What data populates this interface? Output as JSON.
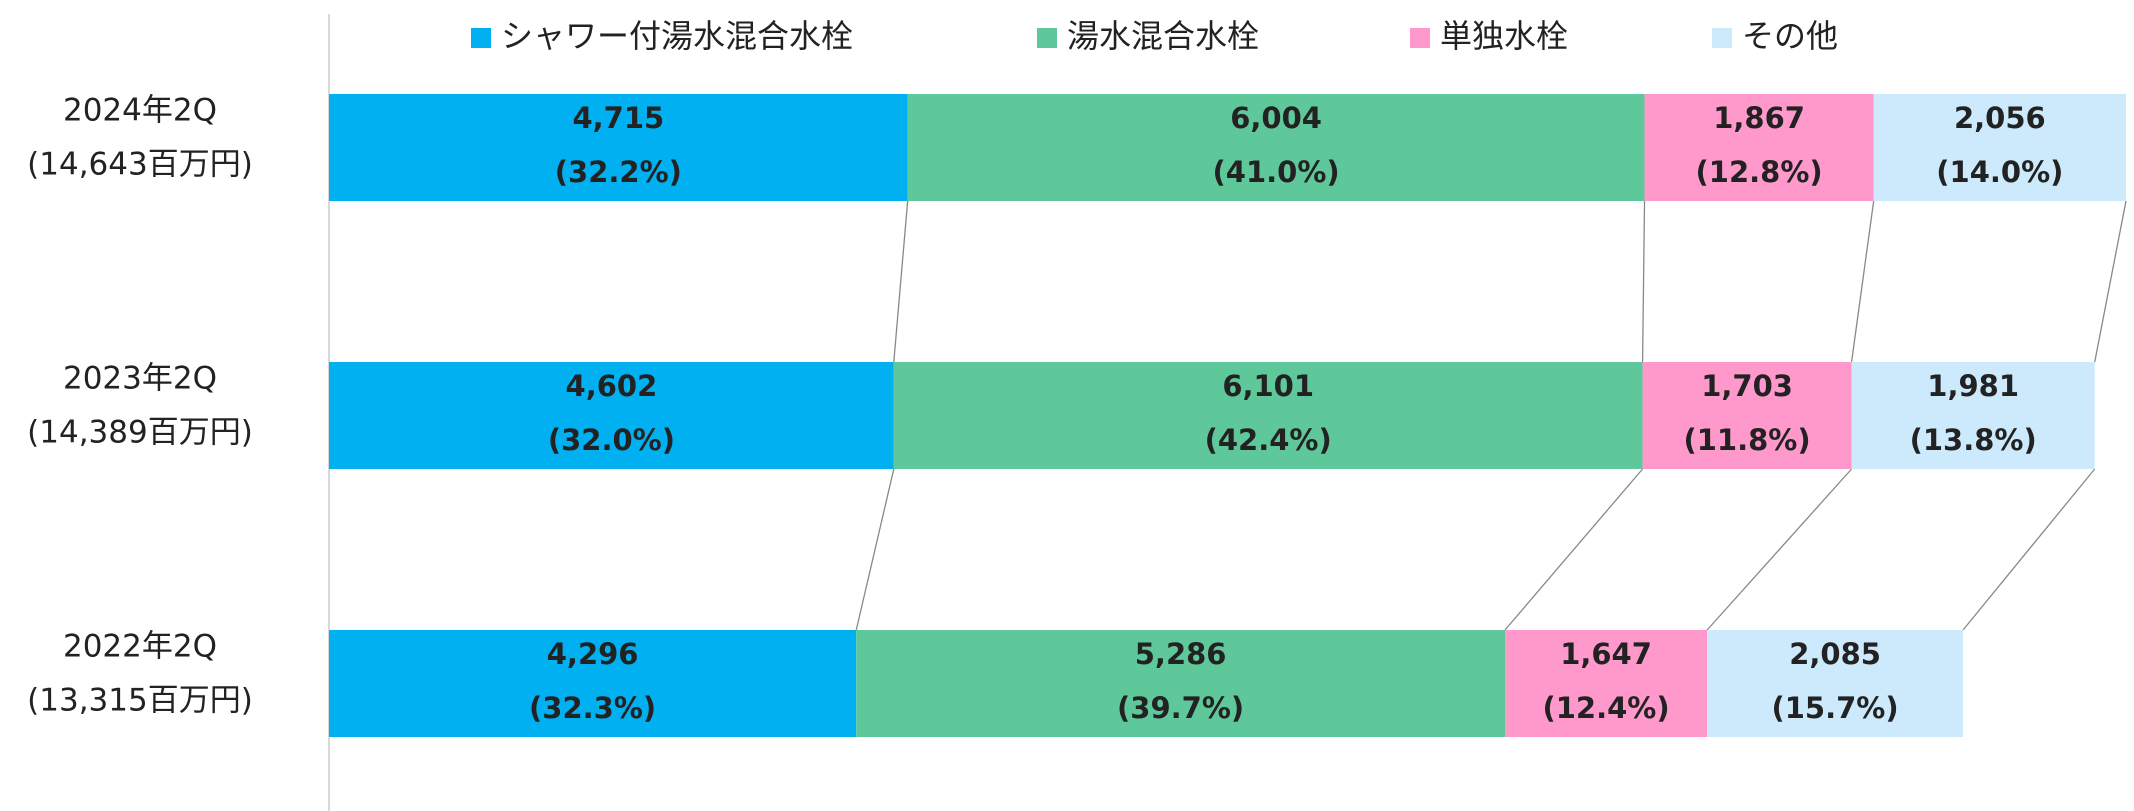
{
  "chart_data": {
    "type": "stacked-bar-horizontal",
    "categories": [
      "2024年2Q",
      "2023年2Q",
      "2022年2Q"
    ],
    "category_totals": [
      "(14,643百万円)",
      "(14,389百万円)",
      "(13,315百万円)"
    ],
    "series": [
      {
        "name": "シャワー付湯水混合水栓",
        "color": "#00b0f0",
        "values": [
          4715,
          4602,
          4296
        ],
        "value_labels": [
          "4,715",
          "4,602",
          "4,296"
        ],
        "share_labels": [
          "(32.2%)",
          "(32.0%)",
          "(32.3%)"
        ]
      },
      {
        "name": "湯水混合水栓",
        "color": "#5fc89b",
        "values": [
          6004,
          6101,
          5286
        ],
        "value_labels": [
          "6,004",
          "6,101",
          "5,286"
        ],
        "share_labels": [
          "(41.0%)",
          "(42.4%)",
          "(39.7%)"
        ]
      },
      {
        "name": "単独水栓",
        "color": "#ff99cc",
        "values": [
          1867,
          1703,
          1647
        ],
        "value_labels": [
          "1,867",
          "1,703",
          "1,647"
        ],
        "share_labels": [
          "(12.8%)",
          "(11.8%)",
          "(12.4%)"
        ]
      },
      {
        "name": "その他",
        "color": "#cdeafc",
        "values": [
          2056,
          1981,
          2085
        ],
        "value_labels": [
          "2,056",
          "1,981",
          "2,085"
        ],
        "share_labels": [
          "(14.0%)",
          "(13.8%)",
          "(15.7%)"
        ]
      }
    ]
  }
}
